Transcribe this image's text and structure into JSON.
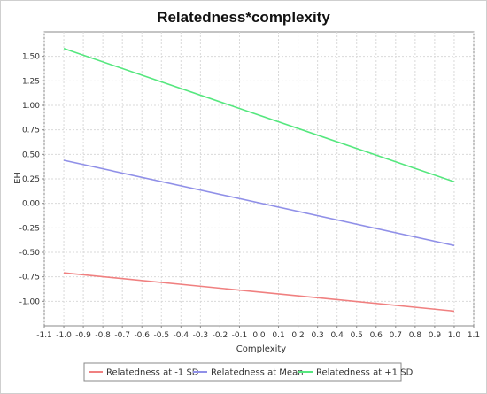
{
  "chart_data": {
    "type": "line",
    "title": "Relatedness*complexity",
    "xlabel": "Complexity",
    "ylabel": "EH",
    "xlim": [
      -1.1,
      1.1
    ],
    "ylim": [
      -1.25,
      1.75
    ],
    "x_ticks": [
      -1.1,
      -1.0,
      -0.9,
      -0.8,
      -0.7,
      -0.6,
      -0.5,
      -0.4,
      -0.3,
      -0.2,
      -0.1,
      0.0,
      0.1,
      0.2,
      0.3,
      0.4,
      0.5,
      0.6,
      0.7,
      0.8,
      0.9,
      1.0,
      1.1
    ],
    "y_ticks": [
      -1.0,
      -0.75,
      -0.5,
      -0.25,
      0.0,
      0.25,
      0.5,
      0.75,
      1.0,
      1.25,
      1.5
    ],
    "grid": true,
    "legend_position": "bottom",
    "x": [
      -1.0,
      1.0
    ],
    "series": [
      {
        "name": "Relatedness at -1 SD",
        "values": [
          -0.71,
          -1.1
        ],
        "color": "#f08080"
      },
      {
        "name": "Relatedness at Mean",
        "values": [
          0.44,
          -0.43
        ],
        "color": "#9090e8"
      },
      {
        "name": "Relatedness at +1 SD",
        "values": [
          1.58,
          0.22
        ],
        "color": "#55e77e"
      }
    ]
  }
}
